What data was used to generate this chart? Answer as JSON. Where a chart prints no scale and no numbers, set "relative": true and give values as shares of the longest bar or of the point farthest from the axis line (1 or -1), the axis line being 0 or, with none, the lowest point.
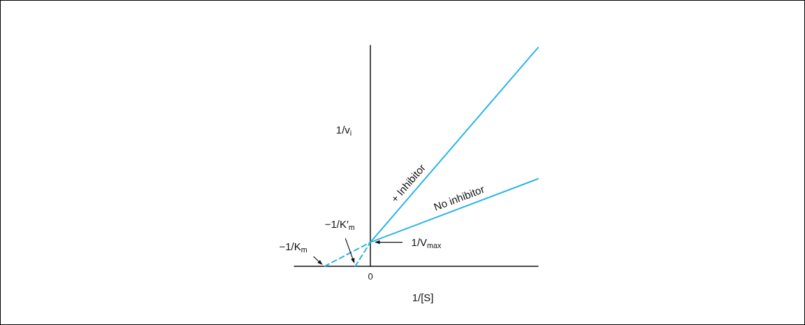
{
  "chart_data": {
    "type": "line",
    "relative": true,
    "xlabel": "1/[S]",
    "ylabel": "1/v$_{i}$",
    "marker": "none",
    "grid": false,
    "legend": false,
    "categories": [
      null,
      null,
      null,
      null,
      null,
      null,
      null,
      null,
      null,
      null,
      null,
      null,
      null,
      null,
      null,
      null,
      null
    ],
    "series": [
      {
        "name": "+ Inhibitor",
        "color": "#2ab4e6",
        "values": [
          null,
          null,
          null,
          null,
          null,
          0.11,
          null,
          null,
          null,
          null,
          null,
          null,
          null,
          null,
          null,
          null,
          1
        ]
      },
      {
        "color": "#2ab4e6",
        "values": [
          null,
          null,
          null,
          null,
          0,
          0.11,
          null,
          null,
          null,
          null,
          null,
          null,
          null,
          null,
          null,
          null,
          null
        ],
        "line_style": "dashed"
      },
      {
        "name": "No inhibitor",
        "color": "#2ab4e6",
        "values": [
          null,
          null,
          null,
          null,
          null,
          0.11,
          null,
          null,
          null,
          null,
          null,
          null,
          null,
          null,
          null,
          null,
          0.4
        ]
      },
      {
        "color": "#2ab4e6",
        "values": [
          null,
          null,
          0,
          null,
          null,
          0.11,
          null,
          null,
          null,
          null,
          null,
          null,
          null,
          null,
          null,
          null,
          null
        ],
        "line_style": "dashed"
      }
    ],
    "annotations": [
      "−1/K$_{m}$",
      "−1/K′$_{m}$",
      "1/V$_{max}$",
      "0"
    ]
  }
}
